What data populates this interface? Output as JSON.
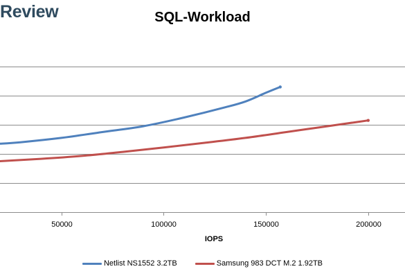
{
  "header": {
    "brand": "Review"
  },
  "chart_data": {
    "type": "line",
    "title": "SQL-Workload",
    "xlabel": "IOPS",
    "ylabel": "",
    "xlim": [
      20000,
      218000
    ],
    "ylim": [
      0,
      6
    ],
    "x_ticks": [
      50000,
      100000,
      150000,
      200000
    ],
    "x_tick_labels": [
      "50000",
      "100000",
      "150000",
      "200000"
    ],
    "y_gridlines": [
      1,
      2,
      3,
      4,
      5
    ],
    "grid": true,
    "legend_position": "bottom",
    "series": [
      {
        "name": "Netlist NS1552 3.2TB",
        "color": "#4f81bd",
        "points": [
          [
            20000,
            2.35
          ],
          [
            30000,
            2.4
          ],
          [
            50000,
            2.55
          ],
          [
            70000,
            2.75
          ],
          [
            90000,
            2.95
          ],
          [
            110000,
            3.25
          ],
          [
            130000,
            3.6
          ],
          [
            140000,
            3.8
          ],
          [
            150000,
            4.1
          ],
          [
            157000,
            4.3
          ]
        ]
      },
      {
        "name": "Samsung 983 DCT M.2 1.92TB",
        "color": "#c0504d",
        "points": [
          [
            20000,
            1.75
          ],
          [
            40000,
            1.83
          ],
          [
            60000,
            1.93
          ],
          [
            80000,
            2.07
          ],
          [
            100000,
            2.22
          ],
          [
            120000,
            2.38
          ],
          [
            140000,
            2.55
          ],
          [
            160000,
            2.75
          ],
          [
            180000,
            2.95
          ],
          [
            190000,
            3.05
          ],
          [
            200000,
            3.15
          ]
        ]
      }
    ]
  }
}
